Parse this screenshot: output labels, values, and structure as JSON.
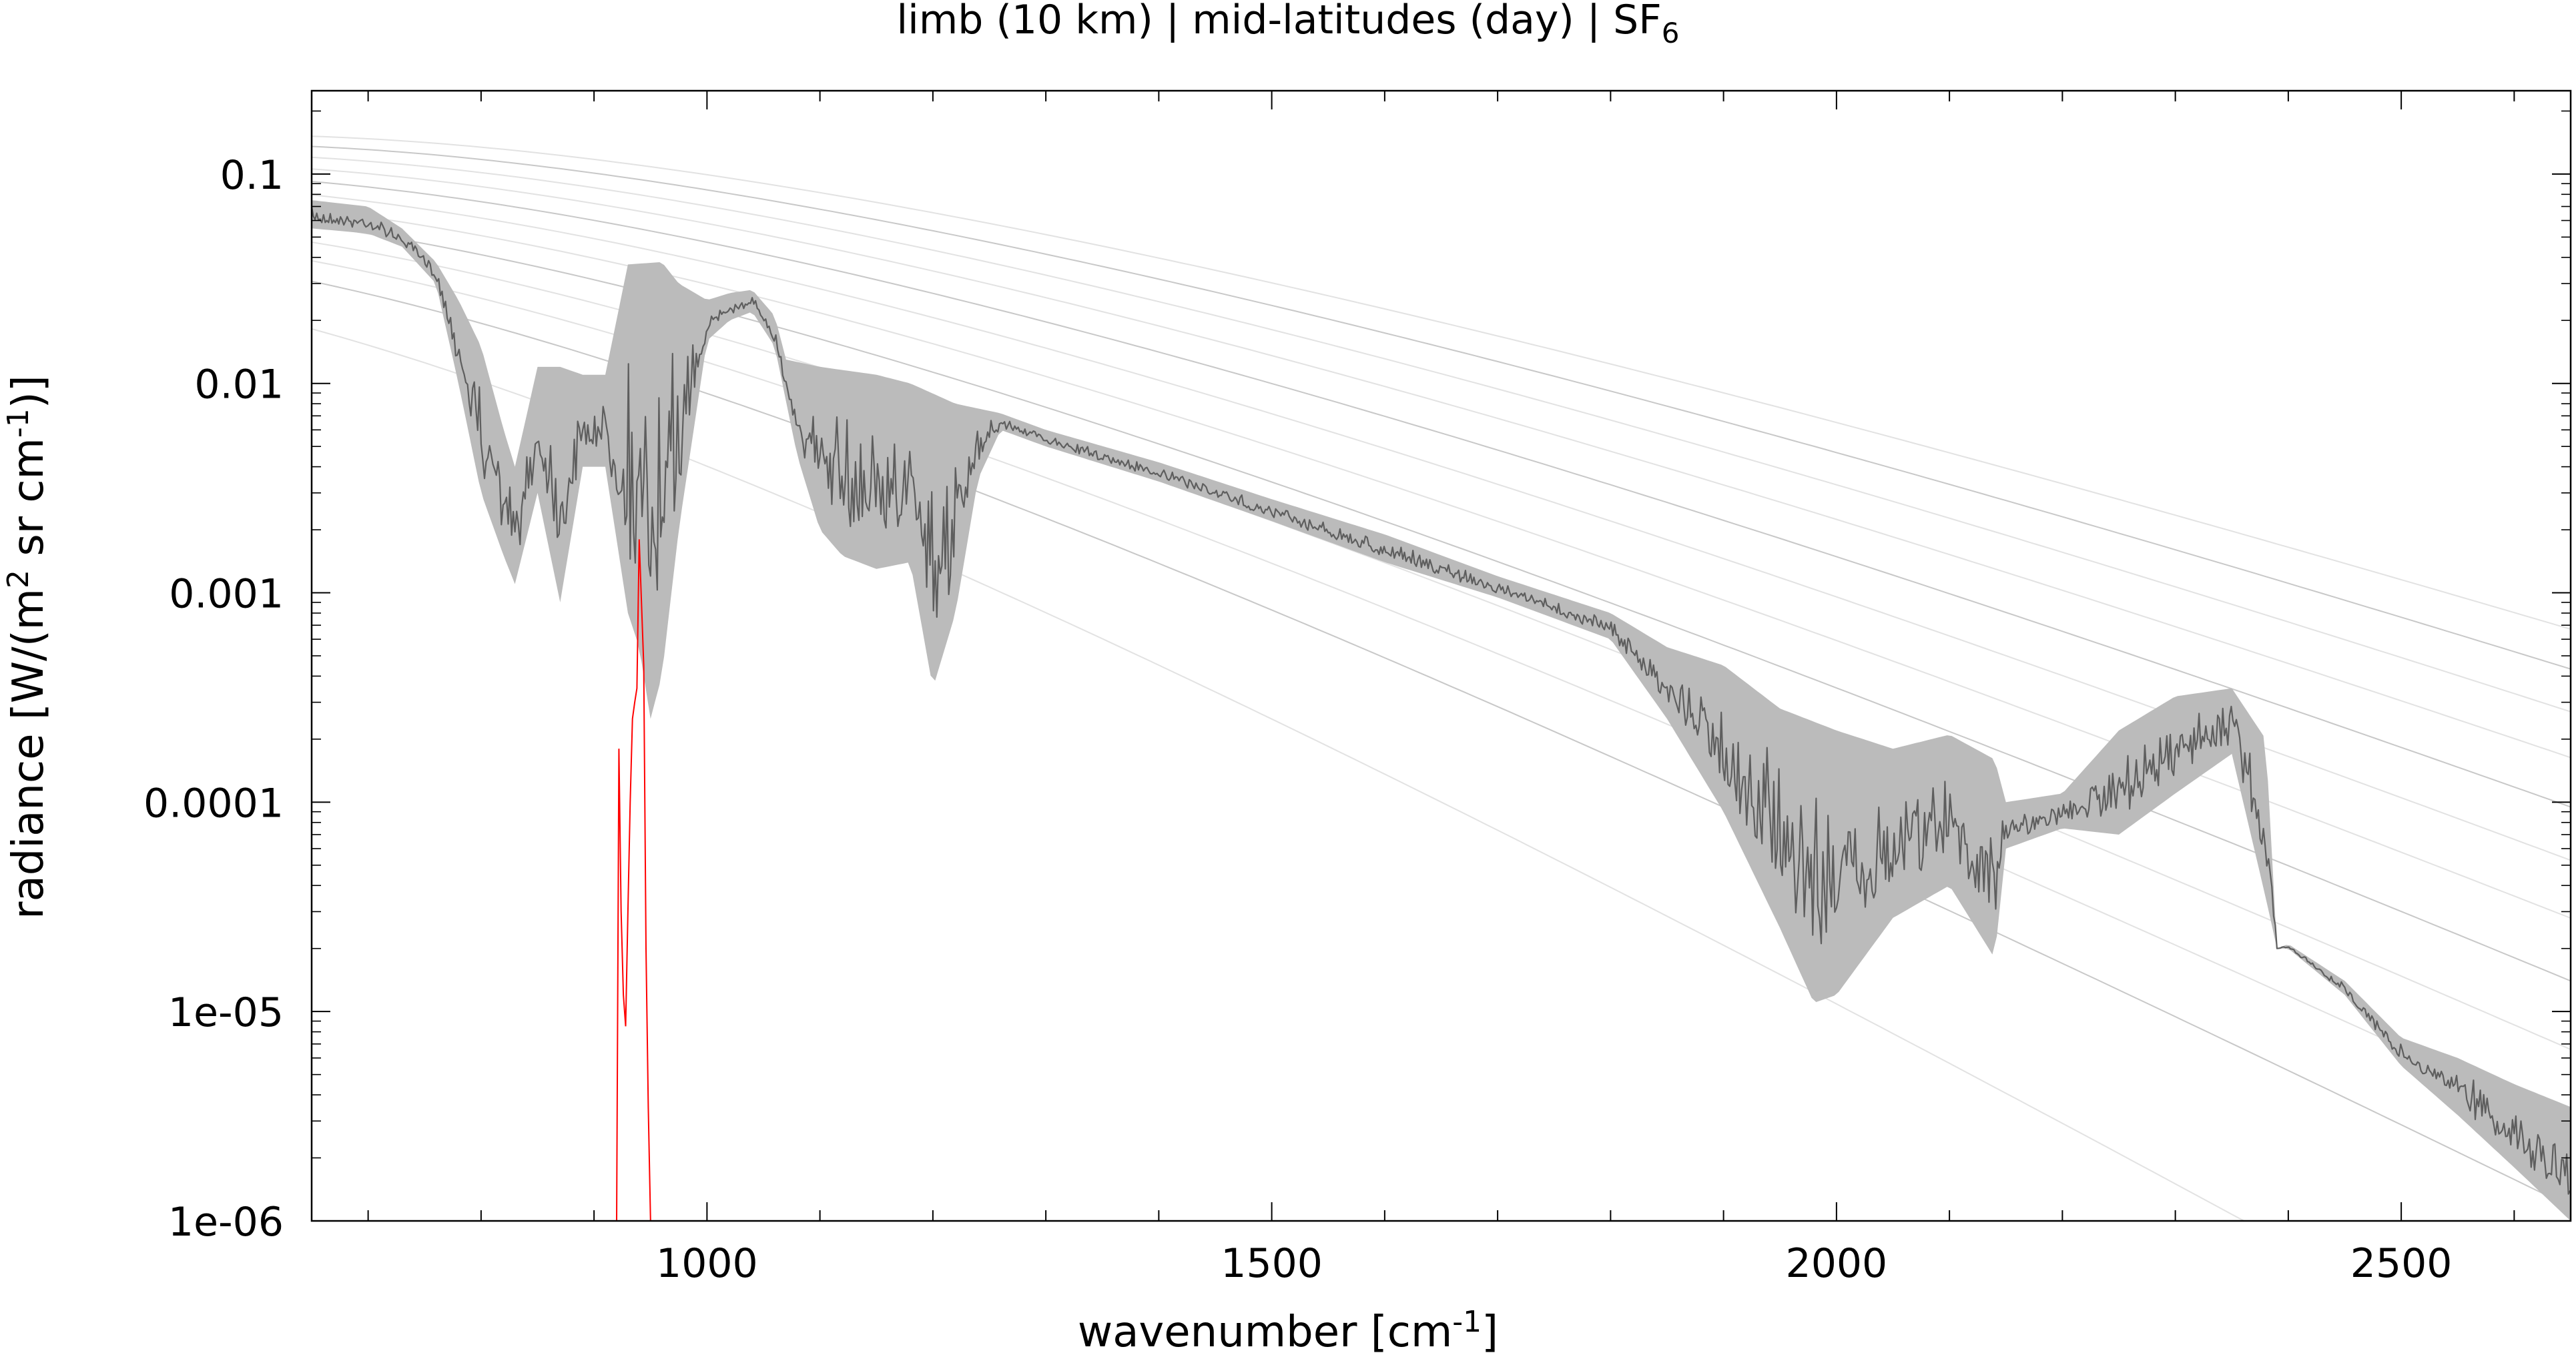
{
  "chart_data": {
    "type": "line",
    "title": {
      "text": "limb (10 km) | mid-latitudes (day) | SF",
      "subscript": "6"
    },
    "xlabel": {
      "prefix": "wavenumber [cm",
      "sup": "-1",
      "suffix": "]"
    },
    "ylabel": {
      "prefix": "radiance [W/(m",
      "sup1": "2",
      "middle": " sr cm",
      "sup2": "-1",
      "suffix": ")]"
    },
    "xlim": [
      650,
      2650
    ],
    "ylim": [
      1e-06,
      0.25
    ],
    "yscale": "log",
    "xticks": [
      {
        "value": 1000,
        "label": "1000"
      },
      {
        "value": 1500,
        "label": "1500"
      },
      {
        "value": 2000,
        "label": "2000"
      },
      {
        "value": 2500,
        "label": "2500"
      }
    ],
    "yticks": [
      {
        "value": 0.1,
        "label": "0.1"
      },
      {
        "value": 0.01,
        "label": "0.01"
      },
      {
        "value": 0.001,
        "label": "0.001"
      },
      {
        "value": 0.0001,
        "label": "0.0001"
      },
      {
        "value": 1e-05,
        "label": "1e-05"
      },
      {
        "value": 1e-06,
        "label": "1e-06"
      }
    ],
    "grid": false,
    "background_curves": {
      "description_values": "Planck radiance reference curves",
      "temperatures_K": [
        180,
        200,
        210,
        220,
        230,
        240,
        250,
        260,
        270,
        280,
        290,
        300
      ]
    },
    "series": [
      {
        "color": "#bbbbbb",
        "envelope_upper": [
          [
            650,
            0.075
          ],
          [
            700,
            0.07
          ],
          [
            730,
            0.055
          ],
          [
            760,
            0.038
          ],
          [
            780,
            0.025
          ],
          [
            800,
            0.015
          ],
          [
            820,
            0.006
          ],
          [
            830,
            0.004
          ],
          [
            850,
            0.012
          ],
          [
            870,
            0.012
          ],
          [
            890,
            0.011
          ],
          [
            910,
            0.011
          ],
          [
            930,
            0.037
          ],
          [
            960,
            0.038
          ],
          [
            975,
            0.03
          ],
          [
            1000,
            0.025
          ],
          [
            1020,
            0.027
          ],
          [
            1040,
            0.028
          ],
          [
            1060,
            0.021
          ],
          [
            1070,
            0.013
          ],
          [
            1100,
            0.012
          ],
          [
            1150,
            0.011
          ],
          [
            1180,
            0.01
          ],
          [
            1220,
            0.008
          ],
          [
            1260,
            0.0072
          ],
          [
            1300,
            0.006
          ],
          [
            1400,
            0.0042
          ],
          [
            1500,
            0.0028
          ],
          [
            1600,
            0.0019
          ],
          [
            1700,
            0.0012
          ],
          [
            1800,
            0.0008
          ],
          [
            1850,
            0.00055
          ],
          [
            1900,
            0.00045
          ],
          [
            1950,
            0.00028
          ],
          [
            2000,
            0.00022
          ],
          [
            2050,
            0.00018
          ],
          [
            2100,
            0.00021
          ],
          [
            2140,
            0.00016
          ],
          [
            2150,
            0.0001
          ],
          [
            2200,
            0.00011
          ],
          [
            2250,
            0.00022
          ],
          [
            2300,
            0.00032
          ],
          [
            2350,
            0.00035
          ],
          [
            2380,
            0.0002
          ],
          [
            2390,
            2e-05
          ],
          [
            2400,
            2.1e-05
          ],
          [
            2450,
            1.4e-05
          ],
          [
            2500,
            7.5e-06
          ],
          [
            2550,
            6e-06
          ],
          [
            2600,
            4.5e-06
          ],
          [
            2650,
            3.5e-06
          ]
        ],
        "envelope_lower": [
          [
            650,
            0.055
          ],
          [
            700,
            0.052
          ],
          [
            730,
            0.045
          ],
          [
            760,
            0.03
          ],
          [
            780,
            0.01
          ],
          [
            800,
            0.003
          ],
          [
            820,
            0.0015
          ],
          [
            830,
            0.0011
          ],
          [
            850,
            0.003
          ],
          [
            870,
            0.0009
          ],
          [
            890,
            0.004
          ],
          [
            910,
            0.004
          ],
          [
            930,
            0.0008
          ],
          [
            940,
            0.00055
          ],
          [
            950,
            0.00025
          ],
          [
            960,
            0.0004
          ],
          [
            975,
            0.002
          ],
          [
            1000,
            0.016
          ],
          [
            1020,
            0.02
          ],
          [
            1040,
            0.022
          ],
          [
            1060,
            0.015
          ],
          [
            1080,
            0.0045
          ],
          [
            1100,
            0.002
          ],
          [
            1120,
            0.0015
          ],
          [
            1150,
            0.0013
          ],
          [
            1180,
            0.0014
          ],
          [
            1200,
            0.00035
          ],
          [
            1220,
            0.0008
          ],
          [
            1240,
            0.0035
          ],
          [
            1260,
            0.006
          ],
          [
            1300,
            0.005
          ],
          [
            1400,
            0.0034
          ],
          [
            1500,
            0.0022
          ],
          [
            1600,
            0.0014
          ],
          [
            1700,
            0.00095
          ],
          [
            1800,
            0.0006
          ],
          [
            1850,
            0.00025
          ],
          [
            1900,
            9e-05
          ],
          [
            1950,
            2.5e-05
          ],
          [
            1980,
            1.1e-05
          ],
          [
            2000,
            1.2e-05
          ],
          [
            2050,
            2.8e-05
          ],
          [
            2100,
            4e-05
          ],
          [
            2140,
            1.8e-05
          ],
          [
            2150,
            6e-05
          ],
          [
            2200,
            7.5e-05
          ],
          [
            2250,
            7e-05
          ],
          [
            2300,
            0.00011
          ],
          [
            2350,
            0.00017
          ],
          [
            2380,
            3.5e-05
          ],
          [
            2390,
            2e-05
          ],
          [
            2400,
            2e-05
          ],
          [
            2450,
            1.2e-05
          ],
          [
            2500,
            5.5e-06
          ],
          [
            2550,
            3.2e-06
          ],
          [
            2600,
            1.8e-06
          ],
          [
            2650,
            1e-06
          ]
        ]
      },
      {
        "color": "#ff0000",
        "x": [
          920,
          922,
          924,
          926,
          928,
          930,
          932,
          934,
          936,
          938,
          940,
          942,
          944,
          946,
          948,
          950
        ],
        "y": [
          1e-06,
          0.00018,
          3e-05,
          1.2e-05,
          8.5e-06,
          3e-05,
          0.0001,
          0.00025,
          0.0003,
          0.00035,
          0.0018,
          0.0009,
          0.00045,
          2e-05,
          3.5e-06,
          1e-06
        ]
      }
    ]
  }
}
